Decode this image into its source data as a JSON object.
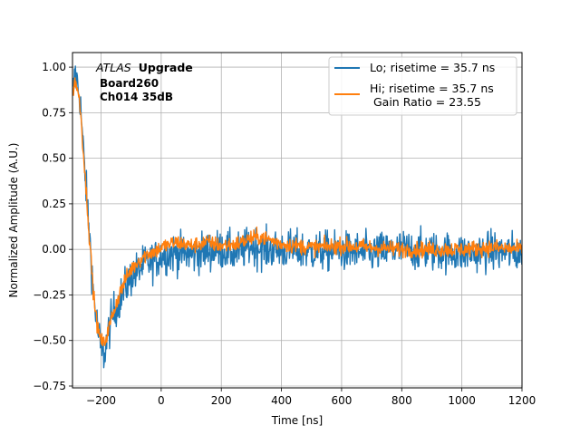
{
  "chart_data": {
    "type": "line",
    "xlabel": "Time [ns]",
    "ylabel": "Normalized Amplitude (A.U.)",
    "xlim": [
      -295,
      1200
    ],
    "ylim": [
      -0.76,
      1.08
    ],
    "xticks": [
      -200,
      0,
      200,
      400,
      600,
      800,
      1000,
      1200
    ],
    "yticks": [
      -0.75,
      -0.5,
      -0.25,
      0.0,
      0.25,
      0.5,
      0.75,
      1.0
    ],
    "grid": true,
    "legend_position": "top-right",
    "annotation": {
      "experiment": "ATLAS",
      "tag": "Upgrade",
      "line2": "Board260",
      "line3": "Ch014 35dB"
    },
    "series": [
      {
        "name": "Lo; risetime = 35.7 ns",
        "color": "#1f77b4",
        "noise": 0.055,
        "shape_x": [
          -295,
          -285,
          -270,
          -255,
          -240,
          -225,
          -210,
          -200,
          -190,
          -175,
          -160,
          -140,
          -120,
          -100,
          -80,
          -60,
          -40,
          -20,
          0,
          50,
          100,
          150,
          200,
          250,
          300,
          350,
          400,
          500,
          600,
          700,
          800,
          900,
          1000,
          1100,
          1200
        ],
        "shape_y": [
          0.84,
          0.97,
          0.83,
          0.45,
          0.12,
          -0.25,
          -0.45,
          -0.55,
          -0.58,
          -0.45,
          -0.35,
          -0.28,
          -0.21,
          -0.15,
          -0.12,
          -0.09,
          -0.07,
          -0.06,
          -0.03,
          -0.02,
          -0.03,
          -0.01,
          0.0,
          -0.02,
          0.02,
          0.0,
          0.0,
          -0.01,
          -0.01,
          -0.02,
          0.0,
          -0.01,
          -0.02,
          -0.01,
          -0.02
        ]
      },
      {
        "name": "Hi; risetime = 35.7 ns\n Gain Ratio = 23.55",
        "color": "#ff7f0e",
        "noise": 0.022,
        "shape_x": [
          -295,
          -285,
          -270,
          -255,
          -240,
          -225,
          -210,
          -200,
          -190,
          -175,
          -160,
          -140,
          -120,
          -100,
          -80,
          -60,
          -40,
          -20,
          0,
          50,
          100,
          150,
          200,
          250,
          300,
          330,
          400,
          500,
          600,
          700,
          800,
          900,
          1000,
          1100,
          1200
        ],
        "shape_y": [
          0.86,
          0.93,
          0.8,
          0.45,
          0.1,
          -0.25,
          -0.45,
          -0.5,
          -0.52,
          -0.44,
          -0.35,
          -0.25,
          -0.17,
          -0.11,
          -0.07,
          -0.04,
          -0.02,
          -0.01,
          0.01,
          0.04,
          0.02,
          0.04,
          0.02,
          0.03,
          0.06,
          0.07,
          0.03,
          0.01,
          0.02,
          0.01,
          0.0,
          0.0,
          0.0,
          0.01,
          0.0
        ]
      }
    ]
  }
}
